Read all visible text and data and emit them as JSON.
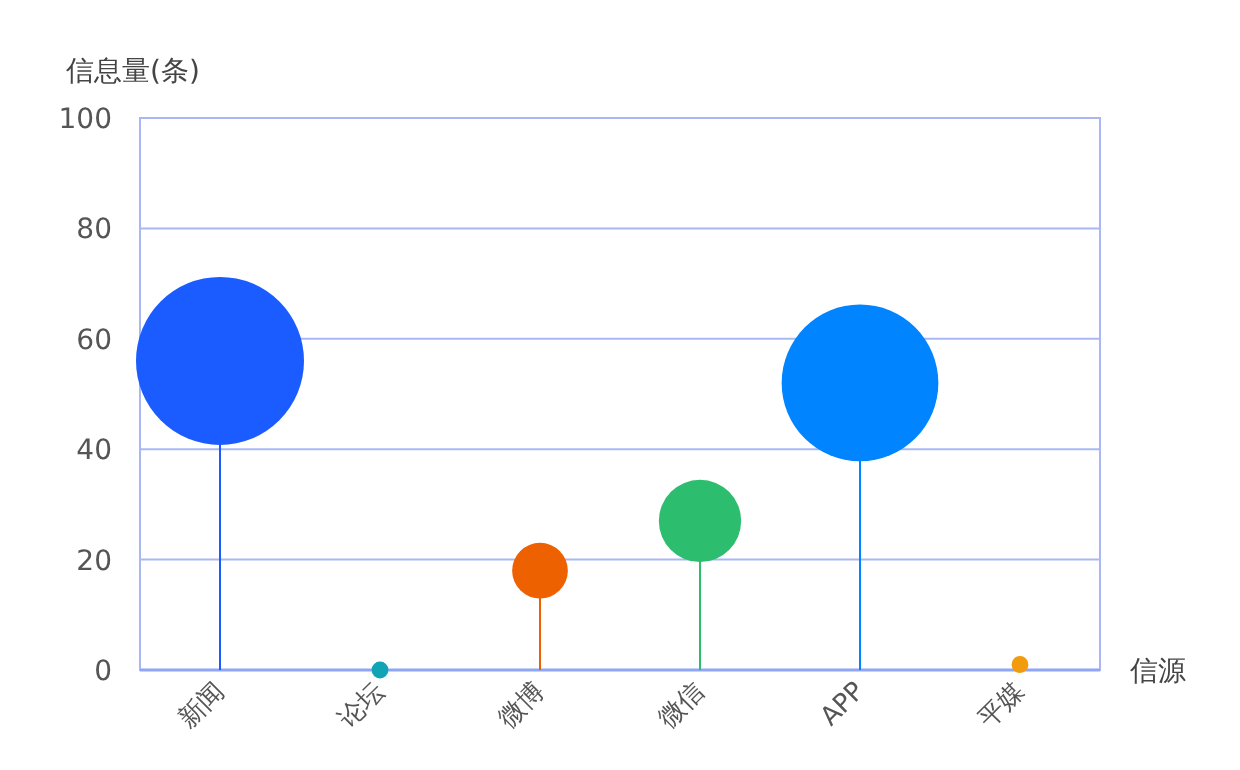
{
  "chart_data": {
    "type": "lollipop",
    "ylabel": "信息量(条)",
    "xlabel": "信源",
    "categories": [
      "新闻",
      "论坛",
      "微博",
      "微信",
      "APP",
      "平媒"
    ],
    "values": [
      56,
      0,
      18,
      27,
      52,
      1
    ],
    "sizes": [
      1,
      0.01,
      0.11,
      0.24,
      0.87,
      0.01
    ],
    "colors": [
      "#1a5cff",
      "#11a4b4",
      "#ee6100",
      "#2dbd6e",
      "#0084ff",
      "#f29b0d"
    ],
    "ylim": [
      0,
      100
    ],
    "yticks": [
      0,
      20,
      40,
      60,
      80,
      100
    ],
    "grid": "y"
  }
}
